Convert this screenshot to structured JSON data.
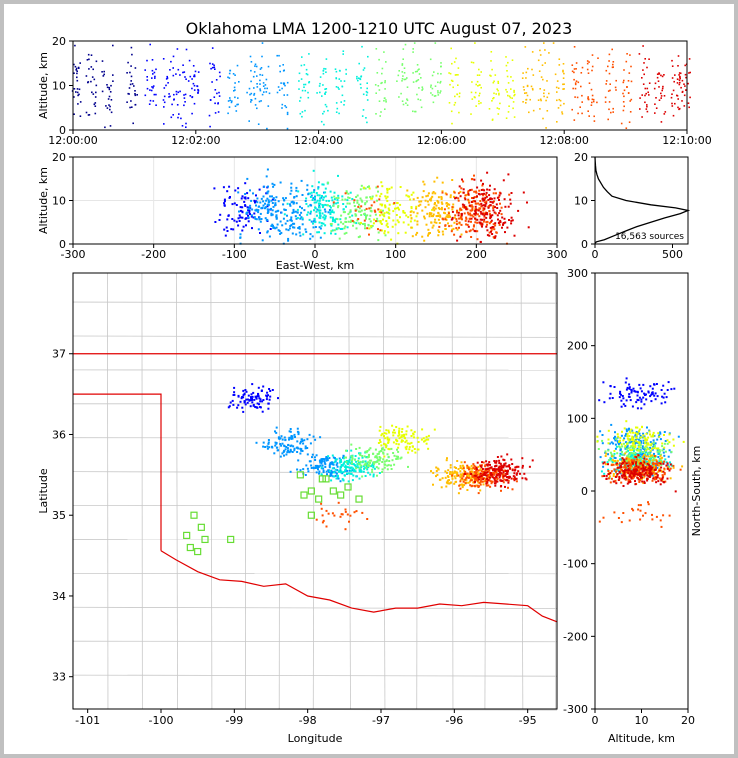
{
  "chart_data": {
    "title": "Oklahoma LMA 1200-1210 UTC August 07, 2023",
    "panels": [
      {
        "id": "time-height",
        "type": "scatter",
        "xlabel": "",
        "ylabel": "Altitude, km",
        "xticks": [
          "12:00:00",
          "12:02:00",
          "12:04:00",
          "12:06:00",
          "12:08:00",
          "12:10:00"
        ],
        "xlim_minutes": [
          0,
          10
        ],
        "ylim": [
          0,
          20
        ],
        "yticks": [
          0,
          10,
          20
        ],
        "color_by": "time",
        "bursts_minutes": [
          0.05,
          0.28,
          0.55,
          0.95,
          1.25,
          1.55,
          1.75,
          1.95,
          2.3,
          2.6,
          2.9,
          3.1,
          3.4,
          3.75,
          4.05,
          4.35,
          4.7,
          5.0,
          5.35,
          5.6,
          5.9,
          6.2,
          6.55,
          6.85,
          7.1,
          7.4,
          7.65,
          7.9,
          8.2,
          8.45,
          8.75,
          9.0,
          9.3,
          9.55,
          9.8,
          9.95
        ]
      },
      {
        "id": "east-west-altitude",
        "type": "scatter",
        "xlabel": "East-West, km",
        "ylabel": "Altitude, km",
        "xlim": [
          -300,
          300
        ],
        "xticks": [
          -300,
          -200,
          -100,
          0,
          100,
          200,
          300
        ],
        "ylim": [
          0,
          20
        ],
        "yticks": [
          0,
          10,
          20
        ]
      },
      {
        "id": "altitude-histogram",
        "type": "line",
        "xlim": [
          0,
          600
        ],
        "xticks": [
          0,
          500
        ],
        "ylim": [
          0,
          20
        ],
        "yticks": [
          0,
          10,
          20
        ],
        "annotation": "16,563 sources",
        "profile": [
          [
            0.5,
            10
          ],
          [
            1,
            60
          ],
          [
            2,
            130
          ],
          [
            3,
            200
          ],
          [
            4,
            270
          ],
          [
            5,
            360
          ],
          [
            6,
            450
          ],
          [
            7,
            550
          ],
          [
            7.7,
            600
          ],
          [
            8.3,
            520
          ],
          [
            9,
            360
          ],
          [
            10,
            200
          ],
          [
            11,
            110
          ],
          [
            12,
            80
          ],
          [
            13,
            55
          ],
          [
            14,
            38
          ],
          [
            15,
            22
          ],
          [
            16,
            12
          ],
          [
            17,
            6
          ],
          [
            18,
            3
          ],
          [
            19,
            1
          ],
          [
            20,
            0
          ]
        ]
      },
      {
        "id": "plan-view",
        "type": "scatter",
        "xlabel": "Longitude",
        "ylabel": "Latitude",
        "xlim": [
          -101.2,
          -94.6
        ],
        "xticks": [
          -101,
          -100,
          -99,
          -98,
          -97,
          -96,
          -95
        ],
        "ylim": [
          32.6,
          38.0
        ],
        "yticks": [
          33,
          34,
          35,
          36,
          37
        ],
        "stations": [
          [
            -99.55,
            35.0
          ],
          [
            -99.45,
            34.85
          ],
          [
            -99.65,
            34.75
          ],
          [
            -99.4,
            34.7
          ],
          [
            -99.6,
            34.6
          ],
          [
            -99.5,
            34.55
          ],
          [
            -99.05,
            34.7
          ],
          [
            -98.05,
            35.25
          ],
          [
            -97.95,
            35.3
          ],
          [
            -97.85,
            35.2
          ],
          [
            -97.75,
            35.45
          ],
          [
            -97.65,
            35.3
          ],
          [
            -97.55,
            35.25
          ],
          [
            -97.45,
            35.35
          ],
          [
            -97.95,
            35.0
          ],
          [
            -97.3,
            35.2
          ],
          [
            -97.8,
            35.45
          ],
          [
            -98.1,
            35.5
          ]
        ]
      },
      {
        "id": "altitude-north-south",
        "type": "scatter",
        "xlabel": "Altitude, km",
        "ylabel": "North-South, km",
        "xlim": [
          0,
          20
        ],
        "xticks": [
          0,
          10,
          20
        ],
        "ylim": [
          -300,
          300
        ],
        "yticks": [
          -300,
          -200,
          -100,
          0,
          100,
          200,
          300
        ]
      }
    ],
    "clusters": [
      {
        "t": 0.12,
        "lon": -98.75,
        "lat": 36.45,
        "ew": -90,
        "ns": 135,
        "n": 90
      },
      {
        "t": 0.25,
        "lon": -98.25,
        "lat": 35.9,
        "ew": -62,
        "ns": 72,
        "n": 110
      },
      {
        "t": 0.35,
        "lon": -97.75,
        "lat": 35.62,
        "ew": -20,
        "ns": 45,
        "n": 120
      },
      {
        "t": 0.45,
        "lon": -97.4,
        "lat": 35.62,
        "ew": 10,
        "ns": 42,
        "n": 140
      },
      {
        "t": 0.55,
        "lon": -97.1,
        "lat": 35.7,
        "ew": 50,
        "ns": 55,
        "n": 120
      },
      {
        "t": 0.65,
        "lon": -96.7,
        "lat": 35.95,
        "ew": 95,
        "ns": 72,
        "n": 100
      },
      {
        "t": 0.75,
        "lon": -95.9,
        "lat": 35.5,
        "ew": 150,
        "ns": 35,
        "n": 150
      },
      {
        "t": 0.85,
        "lon": -95.6,
        "lat": 35.5,
        "ew": 195,
        "ns": 30,
        "n": 170
      },
      {
        "t": 0.95,
        "lon": -95.4,
        "lat": 35.55,
        "ew": 210,
        "ns": 28,
        "n": 170
      },
      {
        "t": 0.9,
        "lon": -97.6,
        "lat": 35.02,
        "ew": 70,
        "ns": -30,
        "n": 25
      }
    ]
  }
}
